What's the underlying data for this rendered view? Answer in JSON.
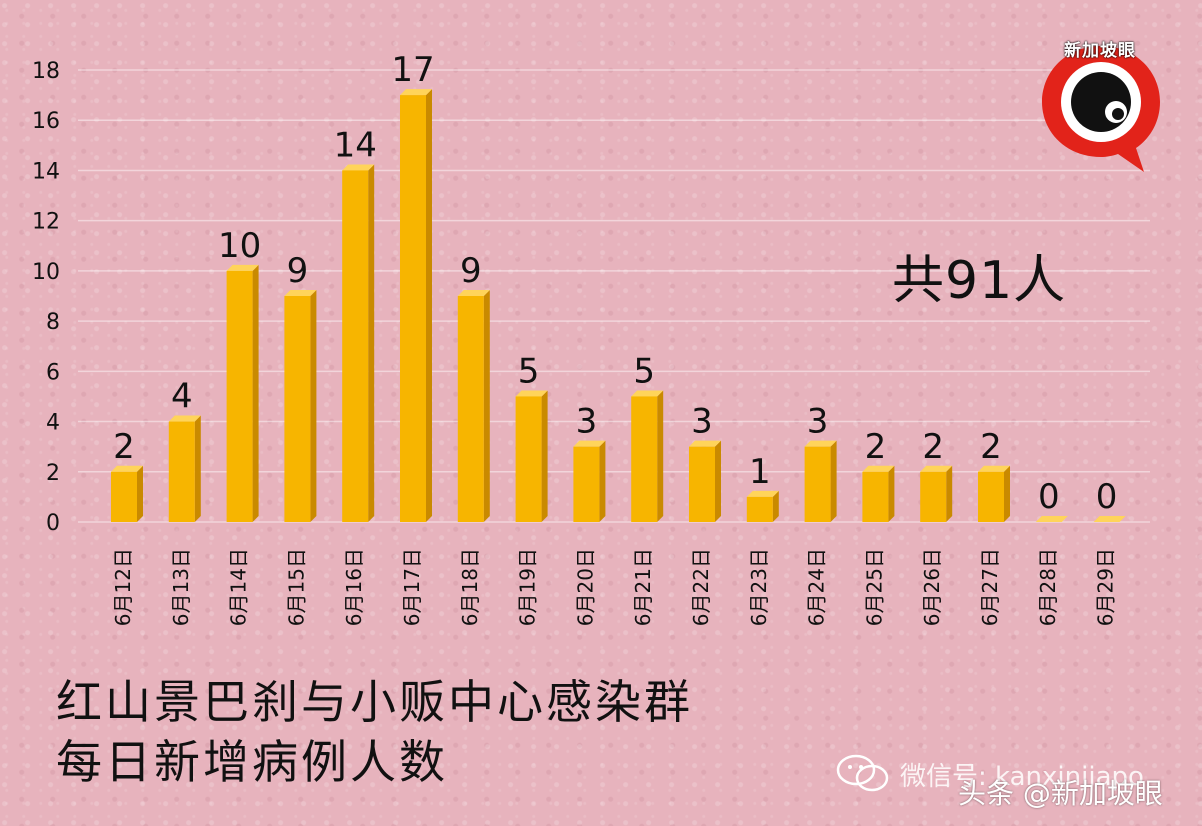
{
  "chart_data": {
    "type": "bar",
    "categories": [
      "6月12日",
      "6月13日",
      "6月14日",
      "6月15日",
      "6月16日",
      "6月17日",
      "6月18日",
      "6月19日",
      "6月20日",
      "6月21日",
      "6月22日",
      "6月23日",
      "6月24日",
      "6月25日",
      "6月26日",
      "6月27日",
      "6月28日",
      "6月29日"
    ],
    "values": [
      2,
      4,
      10,
      9,
      14,
      17,
      9,
      5,
      3,
      5,
      3,
      1,
      3,
      2,
      2,
      2,
      0,
      0
    ],
    "ylim": [
      0,
      18
    ],
    "yticks": [
      0,
      2,
      4,
      6,
      8,
      10,
      12,
      14,
      16,
      18
    ],
    "grid": true,
    "bar_color": "#f7b500",
    "bar_side_color": "#c98a00",
    "bar_top_color": "#ffd45a",
    "title_lines": [
      "红山景巴刹与小贩中心感染群",
      "每日新增病例人数"
    ],
    "annotation": "共91人"
  },
  "logo": {
    "text": "新加坡眼",
    "ring_color": "#e2231a"
  },
  "watermarks": {
    "wechat": "微信号: kanxinjiapo",
    "toutiao": "头条 @新加坡眼"
  }
}
